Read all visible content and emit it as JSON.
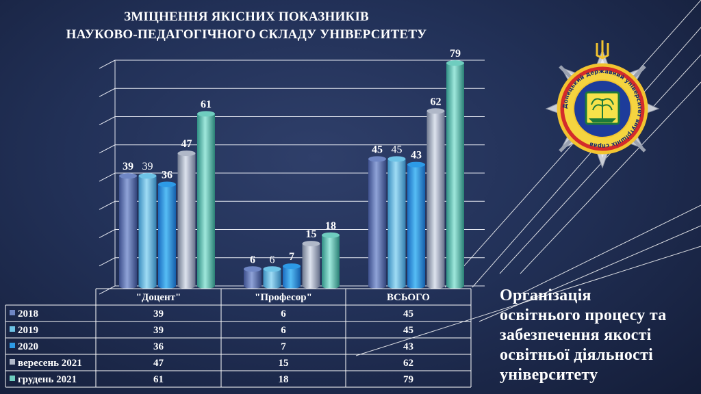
{
  "title": {
    "line1": "ЗМІЦНЕННЯ ЯКІСНИХ ПОКАЗНИКІВ",
    "line2": "НАУКОВО-ПЕДАГОГІЧНОГО СКЛАДУ УНІВЕРСИТЕТУ"
  },
  "side_text": {
    "line1": "Організація",
    "line2": "освітнього процесу та",
    "line3": "забезпечення якості",
    "line4": "освітньої діяльності",
    "line5": "університету"
  },
  "emblem": {
    "ring_text": "Донецький державний університет внутрішніх справ"
  },
  "chart_data": {
    "type": "bar",
    "categories": [
      "\"Доцент\"",
      "\"Професор\"",
      "ВСЬОГО"
    ],
    "series": [
      {
        "name": "2018",
        "values": [
          39,
          6,
          45
        ],
        "color": "#6f86c4"
      },
      {
        "name": "2019",
        "values": [
          39,
          6,
          45
        ],
        "color": "#6ec3e6"
      },
      {
        "name": "2020",
        "values": [
          36,
          7,
          43
        ],
        "color": "#2d9ae6"
      },
      {
        "name": "вересень 2021",
        "values": [
          47,
          15,
          62
        ],
        "color": "#b0b8c8"
      },
      {
        "name": "грудень 2021",
        "values": [
          61,
          18,
          79
        ],
        "color": "#6fcdbf"
      }
    ],
    "ylim": [
      0,
      80
    ],
    "grid": true,
    "legend_placement": "data table below chart",
    "data_labels": true
  }
}
